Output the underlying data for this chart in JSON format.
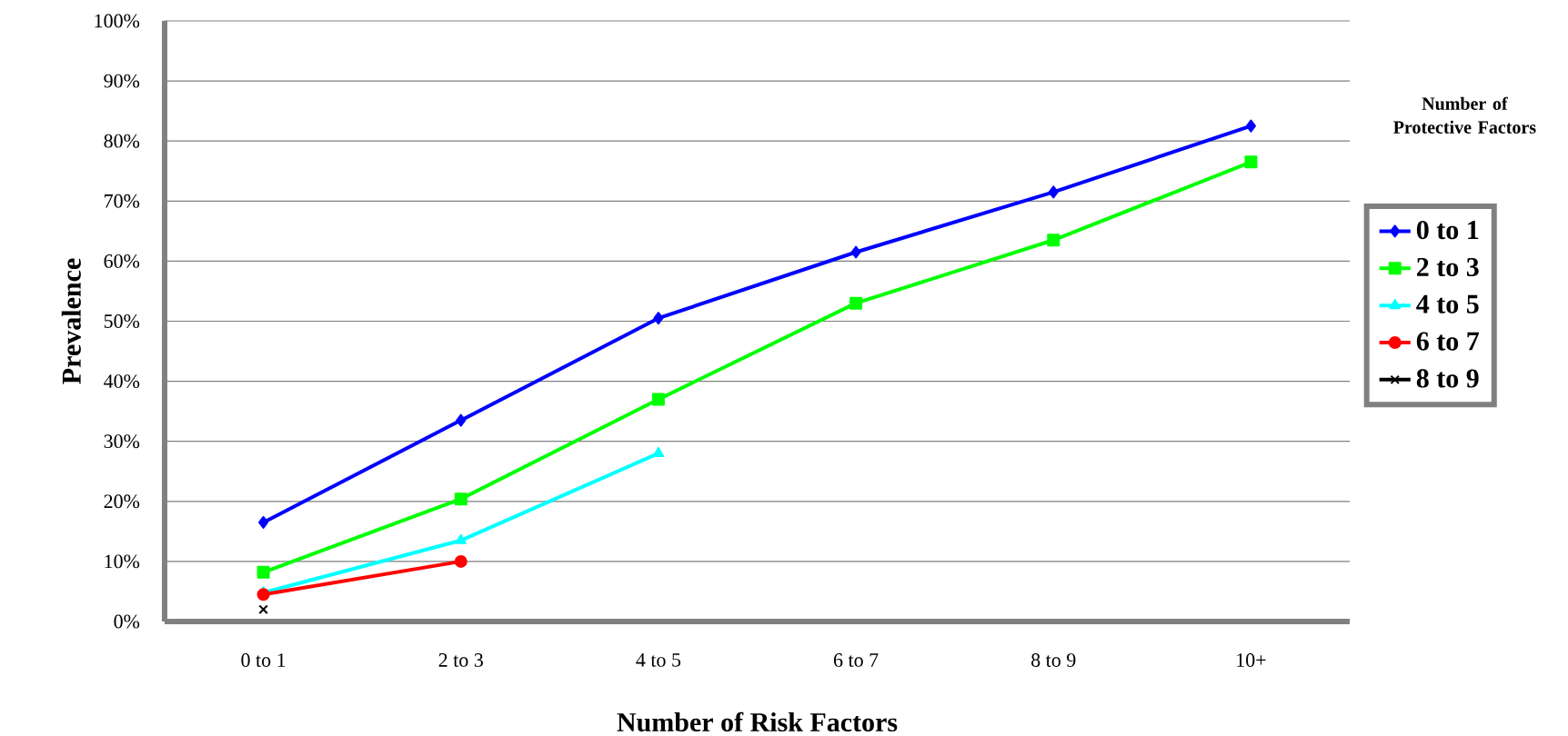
{
  "chart_data": {
    "type": "line",
    "xlabel": "Number of Risk Factors",
    "ylabel": "Prevalence",
    "legend_title": "Number of Protective Factors",
    "categories": [
      "0 to 1",
      "2 to 3",
      "4 to 5",
      "6 to 7",
      "8 to 9",
      "10+"
    ],
    "series": [
      {
        "name": "0 to 1",
        "color": "#0000ff",
        "marker": "diamond",
        "values": [
          16.5,
          33.5,
          50.5,
          61.5,
          71.5,
          82.5
        ]
      },
      {
        "name": "2 to 3",
        "color": "#00ff00",
        "marker": "square",
        "values": [
          8.2,
          20.4,
          37,
          53,
          63.5,
          76.5
        ]
      },
      {
        "name": "4 to 5",
        "color": "#00ffff",
        "marker": "triangle",
        "values": [
          4.8,
          13.5,
          28,
          null,
          null,
          null
        ]
      },
      {
        "name": "6 to 7",
        "color": "#ff0000",
        "marker": "circle",
        "values": [
          4.5,
          10,
          null,
          null,
          null,
          null
        ]
      },
      {
        "name": "8 to 9",
        "color": "#000000",
        "marker": "cross",
        "values": [
          2,
          null,
          null,
          null,
          null,
          null
        ]
      }
    ],
    "ylim": [
      0,
      100
    ],
    "yticks": [
      {
        "value": 0,
        "label": "0%"
      },
      {
        "value": 10,
        "label": "10%"
      },
      {
        "value": 20,
        "label": "20%"
      },
      {
        "value": 30,
        "label": "30%"
      },
      {
        "value": 40,
        "label": "40%"
      },
      {
        "value": 50,
        "label": "50%"
      },
      {
        "value": 60,
        "label": "60%"
      },
      {
        "value": 70,
        "label": "70%"
      },
      {
        "value": 80,
        "label": "80%"
      },
      {
        "value": 90,
        "label": "90%"
      },
      {
        "value": 100,
        "label": "100%"
      }
    ],
    "grid": "y",
    "legend": "right",
    "line_style": "solid"
  }
}
